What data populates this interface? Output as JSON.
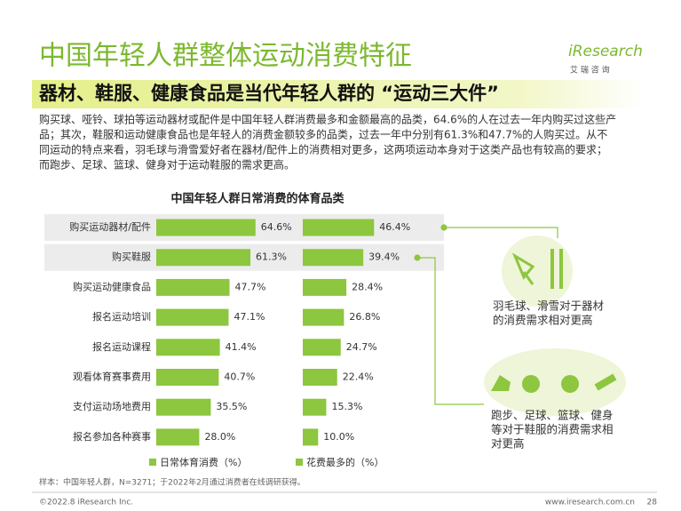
{
  "header": {
    "title": "中国年轻人群整体运动消费特征",
    "subtitle": "器材、鞋服、健康食品是当代年轻人群的 “运动三大件”",
    "logo": "iResearch",
    "logo_sub": "艾 瑞 咨 询"
  },
  "paragraph": [
    "购买球、哑铃、球拍等运动器材或配件是中国年轻人群消费最多和金额最高的品类，64.6%的人在过去一年内购买过这些产",
    "品；其次，鞋服和运动健康食品也是年轻人的消费金额较多的品类，过去一年中分别有61.3%和47.7%的人购买过。从不",
    "同运动的特点来看，羽毛球与滑雪爱好者在器材/配件上的消费相对更多，这两项运动本身对于这类产品也有较高的要求；",
    "而跑步、足球、篮球、健身对于运动鞋服的需求更高。"
  ],
  "chart_data": {
    "type": "bar",
    "orientation": "horizontal",
    "title": "中国年轻人群日常消费的体育品类",
    "categories": [
      "购买运动器材/配件",
      "购买鞋服",
      "购买运动健康食品",
      "报名运动培训",
      "报名运动课程",
      "观看体育赛事费用",
      "支付运动场地费用",
      "报名参加各种赛事"
    ],
    "highlight_rows": [
      0,
      1
    ],
    "series": [
      {
        "name": "日常体育消费（%）",
        "color": "#8dc63f",
        "values": [
          64.6,
          61.3,
          47.7,
          47.1,
          41.4,
          40.7,
          35.5,
          28.0
        ],
        "value_labels": [
          "64.6%",
          "61.3%",
          "47.7%",
          "47.1%",
          "41.4%",
          "40.7%",
          "35.5%",
          "28.0%"
        ]
      },
      {
        "name": "花费最多的（%）",
        "color": "#8dc63f",
        "values": [
          46.4,
          39.4,
          28.4,
          26.8,
          24.7,
          22.4,
          15.3,
          10.0
        ],
        "value_labels": [
          "46.4%",
          "39.4%",
          "28.4%",
          "26.8%",
          "24.7%",
          "22.4%",
          "15.3%",
          "10.0%"
        ]
      }
    ]
  },
  "annotations": [
    [
      "羽毛球、滑雪对于器材",
      "的消费需求相对更高"
    ],
    [
      "跑步、足球、篮球、健身",
      "等对于鞋服的消费需求相",
      "对更高"
    ]
  ],
  "source": "样本：中国年轻人群，N=3271；于2022年2月通过消费者在线调研获得。",
  "footer": {
    "copyright": "©2022.8 iResearch Inc.",
    "url": "www.iresearch.com.cn",
    "page": "28"
  }
}
